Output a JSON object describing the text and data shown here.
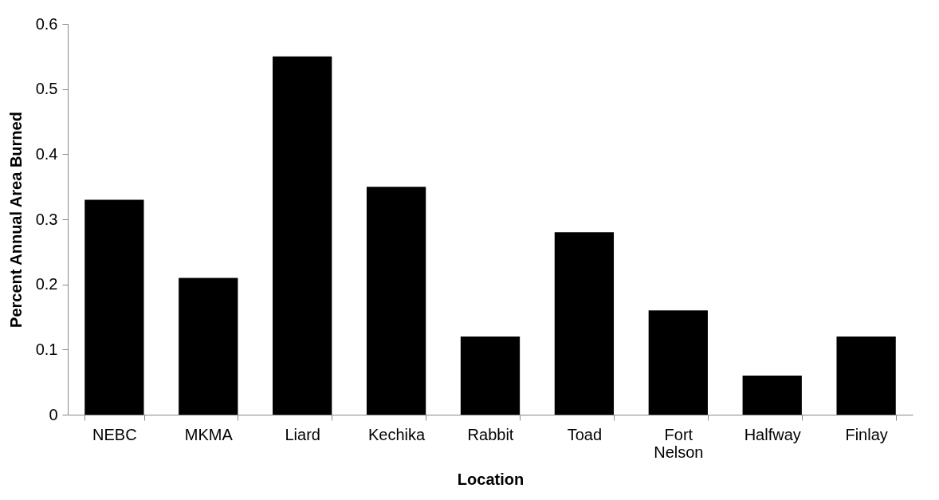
{
  "chart_data": {
    "type": "bar",
    "xlabel": "Location",
    "ylabel": "Percent Annual Area Burned",
    "categories": [
      "NEBC",
      "MKMA",
      "Liard",
      "Kechika",
      "Rabbit",
      "Toad",
      "Fort Nelson",
      "Halfway",
      "Finlay"
    ],
    "values": [
      0.33,
      0.21,
      0.55,
      0.35,
      0.12,
      0.28,
      0.16,
      0.06,
      0.12
    ],
    "color": "#000000",
    "ylim": [
      0,
      0.6
    ],
    "yticks": [
      {
        "value": 0,
        "label": "0"
      },
      0.1,
      0.2,
      0.3,
      0.4,
      0.5,
      0.6
    ],
    "grid": false
  }
}
